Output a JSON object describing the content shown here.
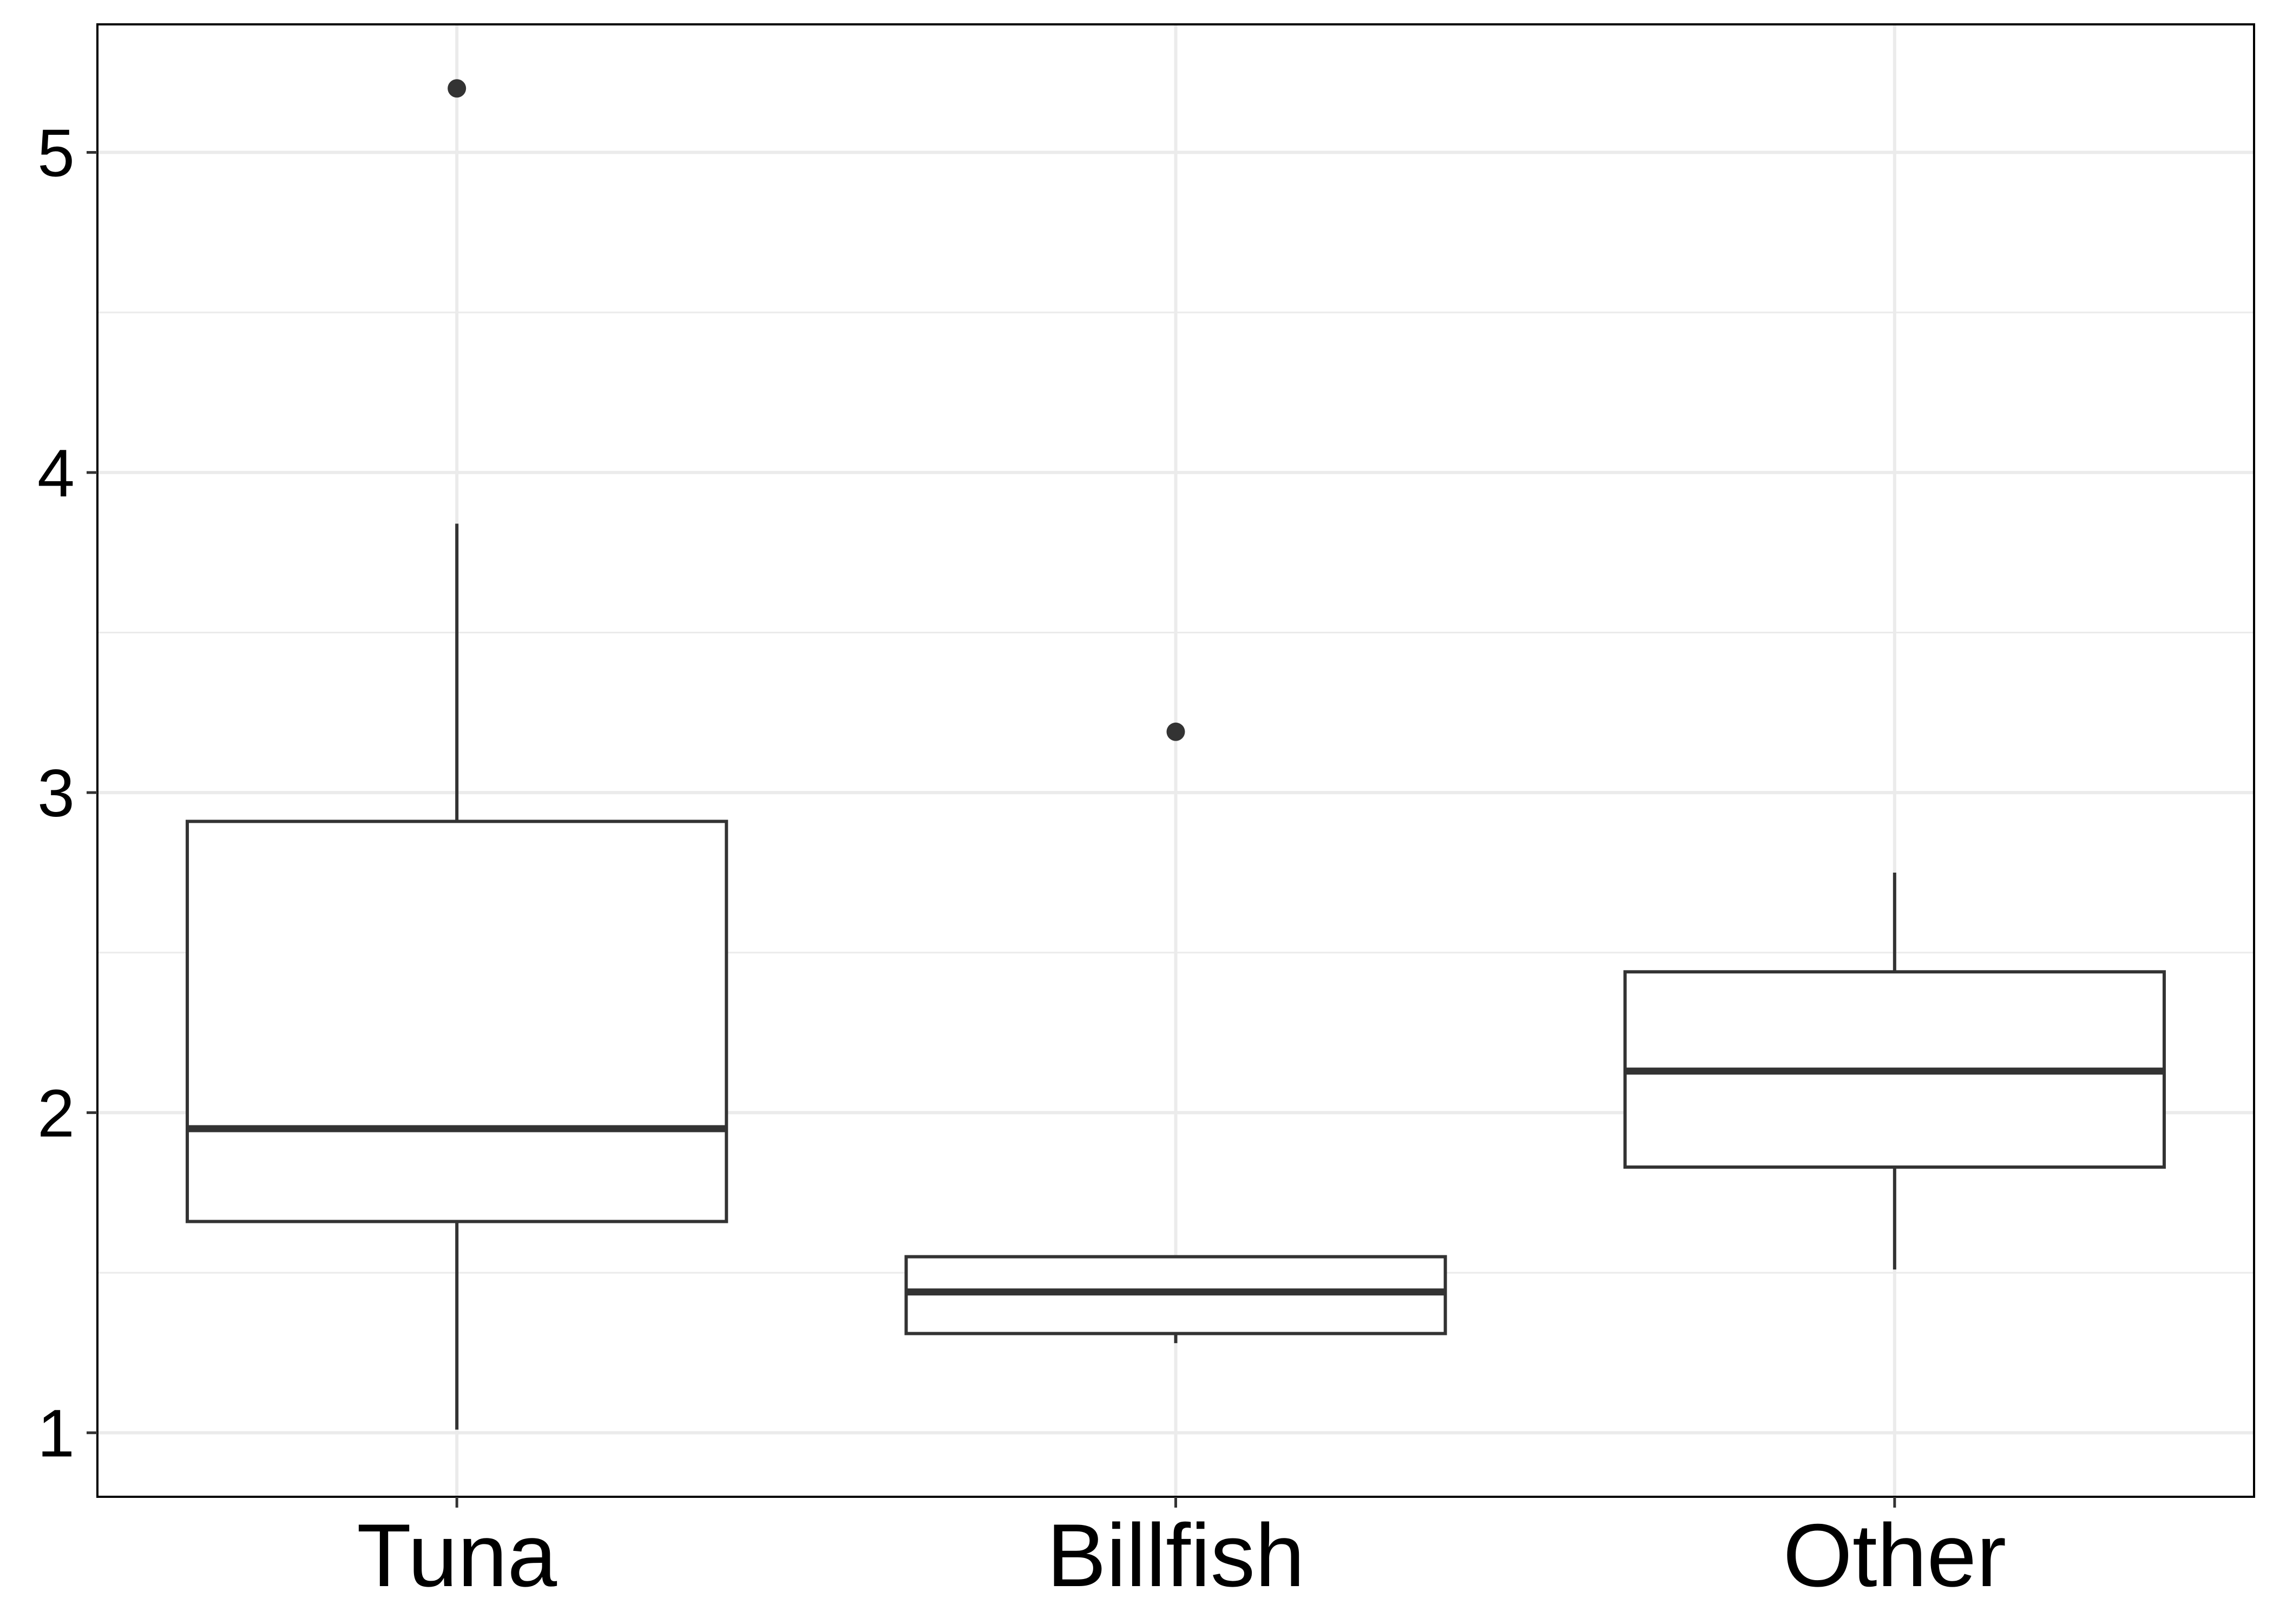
{
  "chart_data": {
    "type": "box",
    "title": "",
    "xlabel": "",
    "ylabel": "",
    "categories": [
      "Tuna",
      "Billfish",
      "Other"
    ],
    "ylim": [
      0.8,
      5.4
    ],
    "y_ticks": [
      1,
      2,
      3,
      4,
      5
    ],
    "y_tick_labels": [
      "1",
      "2",
      "3",
      "4",
      "5"
    ],
    "grid": true,
    "legend": "none",
    "boxes": [
      {
        "category": "Tuna",
        "whisker_low": 1.01,
        "q1": 1.66,
        "median": 1.95,
        "q3": 2.91,
        "whisker_high": 3.84,
        "outliers": [
          5.2
        ]
      },
      {
        "category": "Billfish",
        "whisker_low": 1.28,
        "q1": 1.31,
        "median": 1.44,
        "q3": 1.55,
        "whisker_high": 1.55,
        "outliers": [
          3.19
        ]
      },
      {
        "category": "Other",
        "whisker_low": 1.51,
        "q1": 1.83,
        "median": 2.13,
        "q3": 2.44,
        "whisker_high": 2.75,
        "outliers": []
      }
    ],
    "colors": {
      "box_stroke": "#333333",
      "box_fill": "#ffffff",
      "grid": "#ebebeb",
      "panel_border": "#000000"
    }
  }
}
